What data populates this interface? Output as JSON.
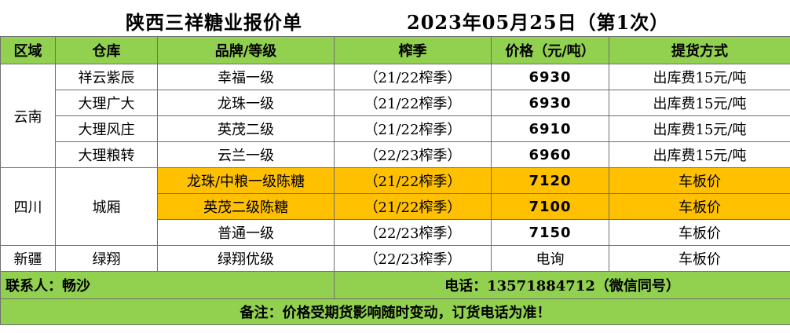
{
  "title": {
    "main": "陕西三祥糖业报价单",
    "date": "2023年05月25日（第1次）"
  },
  "headers": [
    "区域",
    "仓库",
    "品牌/等级",
    "榨季",
    "价格（元/吨）",
    "提货方式"
  ],
  "regions": [
    {
      "name": "云南",
      "rows": [
        {
          "warehouse": "祥云紫辰",
          "brand": "幸福一级",
          "season": "（21/22榨季）",
          "price": "6930",
          "pickup": "出库费15元/吨"
        },
        {
          "warehouse": "大理广大",
          "brand": "龙珠一级",
          "season": "（21/22榨季）",
          "price": "6930",
          "pickup": "出库费15元/吨"
        },
        {
          "warehouse": "大理风庄",
          "brand": "英茂二级",
          "season": "（21/22榨季）",
          "price": "6910",
          "pickup": "出库费15元/吨"
        },
        {
          "warehouse": "大理粮转",
          "brand": "云兰一级",
          "season": "（22/23榨季）",
          "price": "6960",
          "pickup": "出库费15元/吨"
        }
      ]
    },
    {
      "name": "四川",
      "warehouse": "城厢",
      "rows": [
        {
          "brand": "龙珠/中粮一级陈糖",
          "season": "（21/22榨季）",
          "price": "7120",
          "pickup": "车板价",
          "highlight": true
        },
        {
          "brand": "英茂二级陈糖",
          "season": "（21/22榨季）",
          "price": "7100",
          "pickup": "车板价",
          "highlight": true
        },
        {
          "brand": "普通一级",
          "season": "（22/23榨季）",
          "price": "7150",
          "pickup": "车板价",
          "highlight": false
        }
      ]
    },
    {
      "name": "新疆",
      "rows": [
        {
          "warehouse": "绿翔",
          "brand": "绿翔优级",
          "season": "（22/23榨季）",
          "price": "电询",
          "pickup": "车板价"
        }
      ]
    }
  ],
  "contact": {
    "person": "联系人：畅沙",
    "phone": "电话：13571884712（微信同号）"
  },
  "note": "备注：价格受期货影响随时变动，订货电话为准！",
  "colors": {
    "header_green": "#92d050",
    "highlight_orange": "#ffc000",
    "grid": "#6f6f6f"
  }
}
